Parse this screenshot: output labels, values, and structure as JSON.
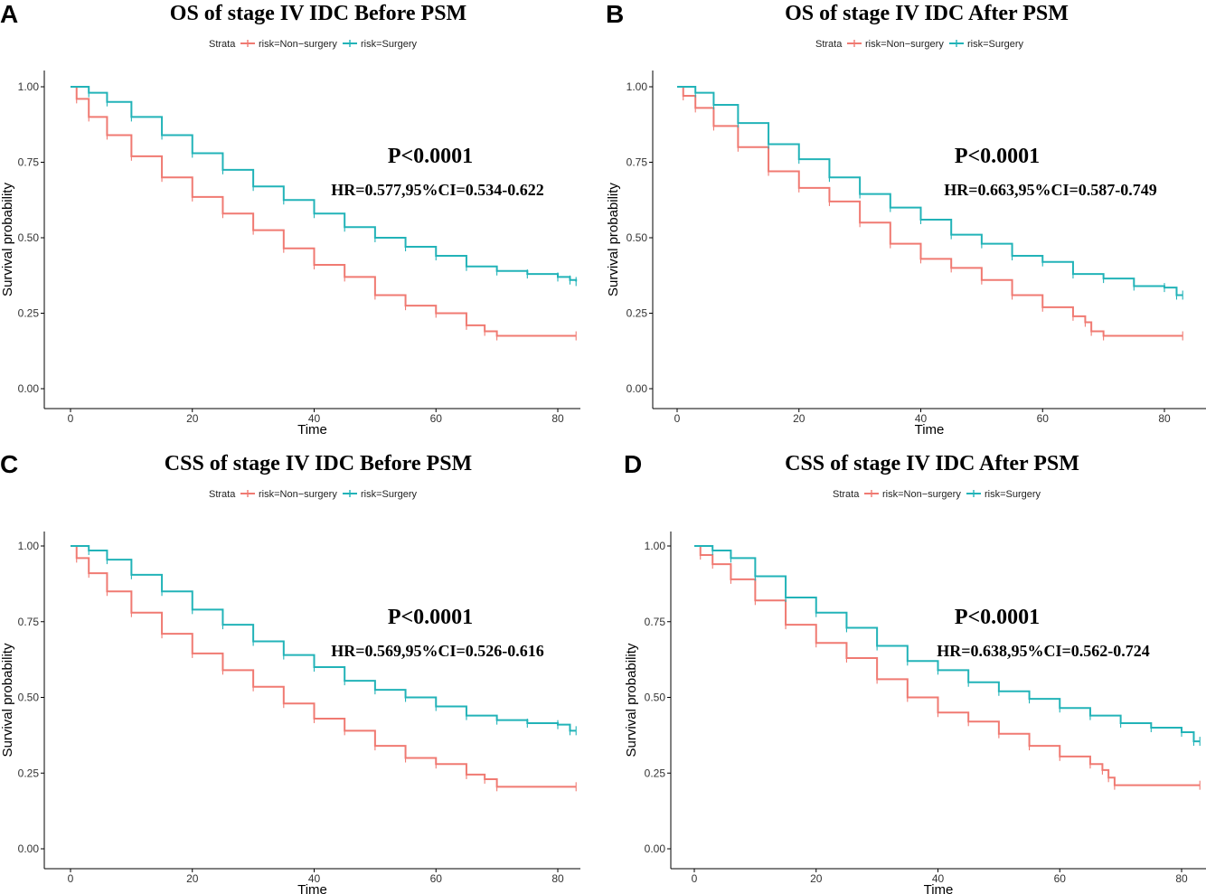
{
  "colors": {
    "non_surgery": "#F07A72",
    "surgery": "#22B3B8"
  },
  "chart_data": [
    {
      "type": "line",
      "panel": "A",
      "title": "OS of stage IV IDC Before PSM",
      "legend": {
        "title": "Strata",
        "entries": [
          "risk=Non−surgery",
          "risk=Surgery"
        ],
        "placement": "top"
      },
      "xlabel": "Time",
      "ylabel": "Survival probability",
      "xlim": [
        -4,
        84
      ],
      "ylim": [
        0,
        1
      ],
      "xticks": [
        "0",
        "20",
        "40",
        "60",
        "80"
      ],
      "yticks": [
        "0.00",
        "0.25",
        "0.50",
        "0.75",
        "1.00"
      ],
      "p_value": "P<0.0001",
      "hr_text": "HR=0.577,95%CI=0.534-0.622",
      "series": [
        {
          "name": "risk=Non-surgery",
          "points": [
            [
              0,
              1.0
            ],
            [
              1,
              0.96
            ],
            [
              3,
              0.9
            ],
            [
              6,
              0.84
            ],
            [
              10,
              0.77
            ],
            [
              15,
              0.7
            ],
            [
              20,
              0.635
            ],
            [
              25,
              0.58
            ],
            [
              30,
              0.525
            ],
            [
              35,
              0.465
            ],
            [
              40,
              0.41
            ],
            [
              45,
              0.37
            ],
            [
              50,
              0.31
            ],
            [
              55,
              0.275
            ],
            [
              60,
              0.25
            ],
            [
              65,
              0.21
            ],
            [
              68,
              0.19
            ],
            [
              70,
              0.175
            ],
            [
              83,
              0.175
            ]
          ]
        },
        {
          "name": "risk=Surgery",
          "points": [
            [
              0,
              1.0
            ],
            [
              3,
              0.98
            ],
            [
              6,
              0.95
            ],
            [
              10,
              0.9
            ],
            [
              15,
              0.84
            ],
            [
              20,
              0.78
            ],
            [
              25,
              0.725
            ],
            [
              30,
              0.67
            ],
            [
              35,
              0.625
            ],
            [
              40,
              0.58
            ],
            [
              45,
              0.535
            ],
            [
              50,
              0.5
            ],
            [
              55,
              0.47
            ],
            [
              60,
              0.44
            ],
            [
              65,
              0.405
            ],
            [
              70,
              0.39
            ],
            [
              75,
              0.38
            ],
            [
              80,
              0.37
            ],
            [
              82,
              0.36
            ],
            [
              83,
              0.355
            ]
          ]
        }
      ]
    },
    {
      "type": "line",
      "panel": "B",
      "title": "OS of stage IV IDC After PSM",
      "legend": {
        "title": "Strata",
        "entries": [
          "risk=Non−surgery",
          "risk=Surgery"
        ],
        "placement": "top"
      },
      "xlabel": "Time",
      "ylabel": "Survival probability",
      "xlim": [
        -4,
        84
      ],
      "ylim": [
        0,
        1
      ],
      "xticks": [
        "0",
        "20",
        "40",
        "60",
        "80"
      ],
      "yticks": [
        "0.00",
        "0.25",
        "0.50",
        "0.75",
        "1.00"
      ],
      "p_value": "P<0.0001",
      "hr_text": "HR=0.663,95%CI=0.587-0.749",
      "series": [
        {
          "name": "risk=Non-surgery",
          "points": [
            [
              0,
              1.0
            ],
            [
              1,
              0.97
            ],
            [
              3,
              0.93
            ],
            [
              6,
              0.87
            ],
            [
              10,
              0.8
            ],
            [
              15,
              0.72
            ],
            [
              20,
              0.665
            ],
            [
              25,
              0.62
            ],
            [
              30,
              0.55
            ],
            [
              35,
              0.48
            ],
            [
              40,
              0.43
            ],
            [
              45,
              0.4
            ],
            [
              50,
              0.36
            ],
            [
              55,
              0.31
            ],
            [
              60,
              0.27
            ],
            [
              65,
              0.24
            ],
            [
              67,
              0.22
            ],
            [
              68,
              0.19
            ],
            [
              70,
              0.175
            ],
            [
              83,
              0.175
            ]
          ]
        },
        {
          "name": "risk=Surgery",
          "points": [
            [
              0,
              1.0
            ],
            [
              3,
              0.98
            ],
            [
              6,
              0.94
            ],
            [
              10,
              0.88
            ],
            [
              15,
              0.81
            ],
            [
              20,
              0.76
            ],
            [
              25,
              0.7
            ],
            [
              30,
              0.645
            ],
            [
              35,
              0.6
            ],
            [
              40,
              0.56
            ],
            [
              45,
              0.51
            ],
            [
              50,
              0.48
            ],
            [
              55,
              0.44
            ],
            [
              60,
              0.42
            ],
            [
              65,
              0.38
            ],
            [
              70,
              0.365
            ],
            [
              75,
              0.34
            ],
            [
              80,
              0.335
            ],
            [
              82,
              0.31
            ],
            [
              83,
              0.31
            ]
          ]
        }
      ]
    },
    {
      "type": "line",
      "panel": "C",
      "title": "CSS of stage IV IDC Before PSM",
      "legend": {
        "title": "Strata",
        "entries": [
          "risk=Non−surgery",
          "risk=Surgery"
        ],
        "placement": "top"
      },
      "xlabel": "Time",
      "ylabel": "Survival probability",
      "xlim": [
        -4,
        84
      ],
      "ylim": [
        0,
        1
      ],
      "xticks": [
        "0",
        "20",
        "40",
        "60",
        "80"
      ],
      "yticks": [
        "0.00",
        "0.25",
        "0.50",
        "0.75",
        "1.00"
      ],
      "p_value": "P<0.0001",
      "hr_text": "HR=0.569,95%CI=0.526-0.616",
      "series": [
        {
          "name": "risk=Non-surgery",
          "points": [
            [
              0,
              1.0
            ],
            [
              1,
              0.96
            ],
            [
              3,
              0.91
            ],
            [
              6,
              0.85
            ],
            [
              10,
              0.78
            ],
            [
              15,
              0.71
            ],
            [
              20,
              0.645
            ],
            [
              25,
              0.59
            ],
            [
              30,
              0.535
            ],
            [
              35,
              0.48
            ],
            [
              40,
              0.43
            ],
            [
              45,
              0.39
            ],
            [
              50,
              0.34
            ],
            [
              55,
              0.3
            ],
            [
              60,
              0.28
            ],
            [
              65,
              0.245
            ],
            [
              68,
              0.23
            ],
            [
              70,
              0.205
            ],
            [
              83,
              0.205
            ]
          ]
        },
        {
          "name": "risk=Surgery",
          "points": [
            [
              0,
              1.0
            ],
            [
              3,
              0.985
            ],
            [
              6,
              0.955
            ],
            [
              10,
              0.905
            ],
            [
              15,
              0.85
            ],
            [
              20,
              0.79
            ],
            [
              25,
              0.74
            ],
            [
              30,
              0.685
            ],
            [
              35,
              0.64
            ],
            [
              40,
              0.6
            ],
            [
              45,
              0.555
            ],
            [
              50,
              0.525
            ],
            [
              55,
              0.5
            ],
            [
              60,
              0.47
            ],
            [
              65,
              0.44
            ],
            [
              70,
              0.425
            ],
            [
              75,
              0.415
            ],
            [
              80,
              0.41
            ],
            [
              82,
              0.39
            ],
            [
              83,
              0.39
            ]
          ]
        }
      ]
    },
    {
      "type": "line",
      "panel": "D",
      "title": "CSS of stage IV IDC After PSM",
      "legend": {
        "title": "Strata",
        "entries": [
          "risk=Non−surgery",
          "risk=Surgery"
        ],
        "placement": "top"
      },
      "xlabel": "Time",
      "ylabel": "Survival probability",
      "xlim": [
        -4,
        84
      ],
      "ylim": [
        0,
        1
      ],
      "xticks": [
        "0",
        "20",
        "40",
        "60",
        "80"
      ],
      "yticks": [
        "0.00",
        "0.25",
        "0.50",
        "0.75",
        "1.00"
      ],
      "p_value": "P<0.0001",
      "hr_text": "HR=0.638,95%CI=0.562-0.724",
      "series": [
        {
          "name": "risk=Non-surgery",
          "points": [
            [
              0,
              1.0
            ],
            [
              1,
              0.97
            ],
            [
              3,
              0.94
            ],
            [
              6,
              0.89
            ],
            [
              10,
              0.82
            ],
            [
              15,
              0.74
            ],
            [
              20,
              0.68
            ],
            [
              25,
              0.63
            ],
            [
              30,
              0.56
            ],
            [
              35,
              0.5
            ],
            [
              40,
              0.45
            ],
            [
              45,
              0.42
            ],
            [
              50,
              0.38
            ],
            [
              55,
              0.34
            ],
            [
              60,
              0.305
            ],
            [
              65,
              0.28
            ],
            [
              67,
              0.26
            ],
            [
              68,
              0.235
            ],
            [
              69,
              0.21
            ],
            [
              83,
              0.21
            ]
          ]
        },
        {
          "name": "risk=Surgery",
          "points": [
            [
              0,
              1.0
            ],
            [
              3,
              0.985
            ],
            [
              6,
              0.96
            ],
            [
              10,
              0.9
            ],
            [
              15,
              0.83
            ],
            [
              20,
              0.78
            ],
            [
              25,
              0.73
            ],
            [
              30,
              0.67
            ],
            [
              35,
              0.62
            ],
            [
              40,
              0.59
            ],
            [
              45,
              0.55
            ],
            [
              50,
              0.52
            ],
            [
              55,
              0.495
            ],
            [
              60,
              0.465
            ],
            [
              65,
              0.44
            ],
            [
              70,
              0.415
            ],
            [
              75,
              0.4
            ],
            [
              80,
              0.385
            ],
            [
              82,
              0.355
            ],
            [
              83,
              0.355
            ]
          ]
        }
      ]
    }
  ]
}
